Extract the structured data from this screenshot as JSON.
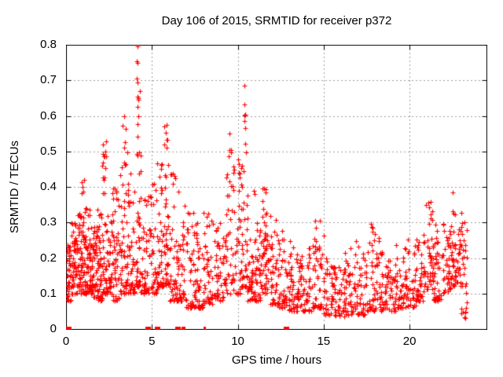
{
  "chart_data": {
    "type": "scatter",
    "title": "Day 106 of 2015, SRMTID for receiver p372",
    "xlabel": "GPS time / hours",
    "ylabel": "SRMTID / TECUs",
    "xlim": [
      0,
      24.48
    ],
    "ylim": [
      0,
      0.8
    ],
    "xticks": [
      0,
      5,
      10,
      15,
      20
    ],
    "x_tick_labels": [
      "0",
      "5",
      "10",
      "15",
      "20"
    ],
    "yticks": [
      0,
      0.1,
      0.2,
      0.3,
      0.4,
      0.5,
      0.6,
      0.7,
      0.8
    ],
    "y_tick_labels": [
      "0",
      "0.1",
      "0.2",
      "0.3",
      "0.4",
      "0.5",
      "0.6",
      "0.7",
      "0.8"
    ],
    "grid": true,
    "legend": "none",
    "grid_color": "#9e9e9e",
    "border_color": "#000000",
    "background": "#ffffff",
    "seed": 7,
    "series": [
      {
        "name": "SRMTID",
        "marker": "plus",
        "color": "#ff0000",
        "density_bands_format": [
          "x_start_hours",
          "x_end_hours",
          "n_points",
          "y_min_TECUs",
          "y_max_TECUs",
          "skew_power"
        ],
        "density_bands": [
          [
            0.02,
            0.3,
            40,
            0.08,
            0.24,
            1.3
          ],
          [
            0.3,
            0.6,
            45,
            0.1,
            0.3,
            1.6
          ],
          [
            0.6,
            0.9,
            45,
            0.1,
            0.33,
            1.8
          ],
          [
            0.9,
            1.2,
            50,
            0.1,
            0.42,
            2.0
          ],
          [
            1.2,
            1.5,
            45,
            0.1,
            0.35,
            2.0
          ],
          [
            1.5,
            1.8,
            45,
            0.09,
            0.3,
            1.6
          ],
          [
            1.8,
            2.1,
            45,
            0.08,
            0.35,
            2.0
          ],
          [
            2.1,
            2.35,
            40,
            0.1,
            0.53,
            2.3
          ],
          [
            2.35,
            2.7,
            40,
            0.1,
            0.36,
            2.0
          ],
          [
            2.7,
            3.1,
            45,
            0.08,
            0.4,
            2.0
          ],
          [
            3.1,
            3.6,
            52,
            0.1,
            0.58,
            2.3
          ],
          [
            3.6,
            4.0,
            45,
            0.1,
            0.45,
            2.2
          ],
          [
            4.05,
            4.35,
            46,
            0.12,
            0.78,
            2.5
          ],
          [
            4.35,
            4.8,
            40,
            0.1,
            0.4,
            2.0
          ],
          [
            4.8,
            5.3,
            45,
            0.1,
            0.42,
            2.0
          ],
          [
            5.3,
            5.7,
            42,
            0.12,
            0.47,
            2.0
          ],
          [
            5.7,
            6.0,
            40,
            0.12,
            0.57,
            2.2
          ],
          [
            6.0,
            6.5,
            42,
            0.08,
            0.44,
            2.2
          ],
          [
            6.5,
            7.0,
            42,
            0.08,
            0.4,
            2.0
          ],
          [
            7.0,
            7.5,
            40,
            0.06,
            0.33,
            1.8
          ],
          [
            7.5,
            8.0,
            40,
            0.06,
            0.3,
            1.8
          ],
          [
            8.0,
            8.6,
            45,
            0.07,
            0.33,
            1.8
          ],
          [
            8.6,
            9.2,
            42,
            0.08,
            0.3,
            1.8
          ],
          [
            9.2,
            9.7,
            42,
            0.1,
            0.55,
            2.3
          ],
          [
            9.7,
            10.2,
            40,
            0.1,
            0.48,
            2.2
          ],
          [
            10.2,
            10.55,
            42,
            0.12,
            0.66,
            2.3
          ],
          [
            10.55,
            11.0,
            40,
            0.08,
            0.42,
            2.2
          ],
          [
            11.0,
            11.4,
            40,
            0.08,
            0.3,
            1.8
          ],
          [
            11.4,
            11.8,
            48,
            0.1,
            0.4,
            1.5
          ],
          [
            11.8,
            12.3,
            40,
            0.07,
            0.33,
            2.0
          ],
          [
            12.3,
            12.8,
            40,
            0.06,
            0.3,
            2.0
          ],
          [
            12.8,
            13.3,
            40,
            0.05,
            0.25,
            1.8
          ],
          [
            13.3,
            13.8,
            38,
            0.05,
            0.22,
            1.6
          ],
          [
            13.8,
            14.4,
            40,
            0.05,
            0.25,
            1.8
          ],
          [
            14.4,
            15.0,
            45,
            0.06,
            0.31,
            1.8
          ],
          [
            15.0,
            15.6,
            40,
            0.04,
            0.2,
            1.6
          ],
          [
            15.6,
            16.2,
            40,
            0.03,
            0.18,
            1.5
          ],
          [
            16.2,
            16.8,
            42,
            0.04,
            0.24,
            1.8
          ],
          [
            16.8,
            17.4,
            42,
            0.04,
            0.25,
            1.8
          ],
          [
            17.4,
            18.0,
            42,
            0.05,
            0.3,
            2.0
          ],
          [
            18.0,
            18.6,
            42,
            0.05,
            0.28,
            1.8
          ],
          [
            18.6,
            19.2,
            42,
            0.05,
            0.22,
            1.6
          ],
          [
            19.2,
            19.8,
            42,
            0.06,
            0.25,
            1.8
          ],
          [
            19.8,
            20.4,
            42,
            0.06,
            0.27,
            1.8
          ],
          [
            20.4,
            20.9,
            40,
            0.08,
            0.28,
            1.8
          ],
          [
            20.9,
            21.4,
            46,
            0.1,
            0.36,
            1.4
          ],
          [
            21.4,
            21.9,
            40,
            0.08,
            0.3,
            1.8
          ],
          [
            21.9,
            22.4,
            42,
            0.1,
            0.3,
            1.5
          ],
          [
            22.4,
            23.0,
            52,
            0.12,
            0.33,
            1.3
          ],
          [
            23.0,
            23.35,
            30,
            0.03,
            0.3,
            1.5
          ]
        ],
        "peak_points": [
          [
            4.16,
            0.795
          ],
          [
            4.16,
            0.75
          ],
          [
            4.14,
            0.705
          ],
          [
            4.18,
            0.695
          ],
          [
            4.17,
            0.655
          ],
          [
            4.15,
            0.625
          ],
          [
            4.19,
            0.6
          ],
          [
            3.38,
            0.6
          ],
          [
            3.3,
            0.572
          ],
          [
            3.46,
            0.563
          ],
          [
            3.42,
            0.525
          ],
          [
            5.85,
            0.575
          ],
          [
            5.83,
            0.553
          ],
          [
            5.87,
            0.532
          ],
          [
            5.84,
            0.51
          ],
          [
            10.4,
            0.685
          ],
          [
            10.38,
            0.632
          ],
          [
            10.42,
            0.603
          ],
          [
            10.4,
            0.585
          ],
          [
            10.41,
            0.565
          ],
          [
            9.5,
            0.55
          ],
          [
            9.52,
            0.503
          ],
          [
            9.48,
            0.487
          ],
          [
            2.15,
            0.52
          ],
          [
            2.17,
            0.492
          ],
          [
            1.05,
            0.42
          ],
          [
            0.95,
            0.4
          ],
          [
            11.55,
            0.395
          ],
          [
            11.62,
            0.385
          ],
          [
            22.5,
            0.385
          ],
          [
            22.52,
            0.332
          ],
          [
            21.1,
            0.355
          ],
          [
            21.15,
            0.342
          ],
          [
            14.8,
            0.305
          ],
          [
            6.1,
            0.435
          ],
          [
            6.32,
            0.43
          ],
          [
            23.2,
            0.3
          ]
        ],
        "zero_value_markers_format": [
          "x_hours",
          "marker_width_px"
        ],
        "zero_value_markers": [
          [
            0.15,
            7
          ],
          [
            4.75,
            7
          ],
          [
            5.32,
            7
          ],
          [
            6.5,
            7
          ],
          [
            6.78,
            3
          ],
          [
            6.92,
            2
          ],
          [
            8.05,
            3
          ],
          [
            12.8,
            7
          ]
        ]
      }
    ]
  }
}
